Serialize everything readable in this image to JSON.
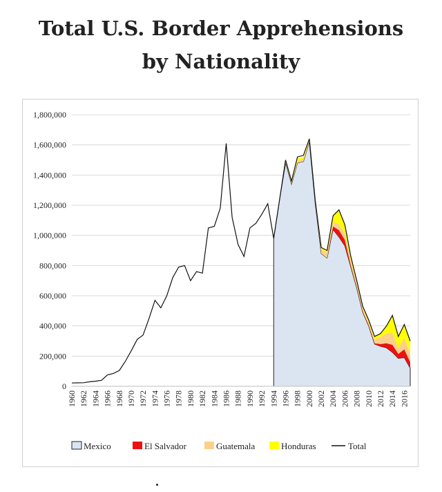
{
  "header": {
    "title_line1": "Total U.S. Border Apprehensions",
    "title_line2": "by Nationality"
  },
  "chart_data": {
    "type": "area",
    "title": "Total U.S. Border Apprehensions by Nationality",
    "xlabel": "",
    "ylabel": "",
    "ylim": [
      0,
      1800000
    ],
    "yticks": [
      "0",
      "200,000",
      "400,000",
      "600,000",
      "800,000",
      "1,000,000",
      "1,200,000",
      "1,400,000",
      "1,600,000",
      "1,800,000"
    ],
    "xticks": [
      "1960",
      "1962",
      "1964",
      "1966",
      "1968",
      "1970",
      "1972",
      "1974",
      "1976",
      "1978",
      "1980",
      "1982",
      "1984",
      "1986",
      "1988",
      "1990",
      "1992",
      "1994",
      "1996",
      "1998",
      "2000",
      "2002",
      "2004",
      "2006",
      "2008",
      "2010",
      "2012",
      "2014",
      "2016"
    ],
    "grid": true,
    "legend_position": "bottom",
    "legend": [
      "Mexico",
      "El Salvador",
      "Guatemala",
      "Honduras",
      "Total"
    ],
    "colors": {
      "Mexico": "#dbe5f1",
      "El Salvador": "#ee1111",
      "Guatemala": "#fcd08c",
      "Honduras": "#ffff00",
      "Total": "#111111",
      "grid": "#d9d9d9",
      "mexico_edge": "#222222"
    },
    "total": {
      "x": [
        1960,
        1961,
        1962,
        1963,
        1964,
        1965,
        1966,
        1967,
        1968,
        1969,
        1970,
        1971,
        1972,
        1973,
        1974,
        1975,
        1976,
        1977,
        1978,
        1979,
        1980,
        1981,
        1982,
        1983,
        1984,
        1985,
        1986,
        1987,
        1988,
        1989,
        1990,
        1991,
        1992,
        1993,
        1994,
        1995,
        1996,
        1997,
        1998,
        1999,
        2000,
        2001,
        2002,
        2003,
        2004,
        2005,
        2006,
        2007,
        2008,
        2009,
        2010,
        2011,
        2012,
        2013,
        2014,
        2015,
        2016,
        2017
      ],
      "values": [
        22000,
        23000,
        24000,
        30000,
        34000,
        40000,
        75000,
        85000,
        105000,
        165000,
        235000,
        310000,
        340000,
        450000,
        570000,
        520000,
        600000,
        720000,
        790000,
        800000,
        700000,
        760000,
        750000,
        1050000,
        1060000,
        1180000,
        1610000,
        1120000,
        940000,
        860000,
        1050000,
        1080000,
        1140000,
        1210000,
        980000,
        1240000,
        1500000,
        1360000,
        1520000,
        1530000,
        1640000,
        1230000,
        920000,
        900000,
        1130000,
        1170000,
        1070000,
        860000,
        700000,
        530000,
        440000,
        330000,
        350000,
        400000,
        470000,
        330000,
        410000,
        300000
      ]
    },
    "stacked": {
      "x": [
        1994,
        1995,
        1996,
        1997,
        1998,
        1999,
        2000,
        2001,
        2002,
        2003,
        2004,
        2005,
        2006,
        2007,
        2008,
        2009,
        2010,
        2011,
        2012,
        2013,
        2014,
        2015,
        2016,
        2017
      ],
      "series": [
        {
          "name": "Mexico",
          "values": [
            980000,
            1240000,
            1480000,
            1340000,
            1480000,
            1490000,
            1620000,
            1210000,
            880000,
            850000,
            1040000,
            990000,
            930000,
            790000,
            650000,
            490000,
            400000,
            280000,
            265000,
            255000,
            225000,
            185000,
            190000,
            120000
          ]
        },
        {
          "name": "El Salvador",
          "values": [
            0,
            0,
            0,
            0,
            0,
            0,
            0,
            0,
            0,
            0,
            20000,
            45000,
            40000,
            10000,
            5000,
            4000,
            5000,
            5000,
            15000,
            30000,
            50000,
            30000,
            55000,
            40000
          ]
        },
        {
          "name": "Guatemala",
          "values": [
            0,
            0,
            5000,
            10000,
            15000,
            15000,
            10000,
            15000,
            25000,
            40000,
            30000,
            40000,
            40000,
            35000,
            30000,
            22000,
            20000,
            28000,
            45000,
            65000,
            80000,
            40000,
            75000,
            60000
          ]
        },
        {
          "name": "Honduras",
          "values": [
            0,
            0,
            5000,
            5000,
            15000,
            15000,
            5000,
            5000,
            15000,
            10000,
            40000,
            95000,
            60000,
            25000,
            15000,
            14000,
            15000,
            17000,
            25000,
            50000,
            115000,
            75000,
            90000,
            80000
          ]
        }
      ]
    }
  }
}
